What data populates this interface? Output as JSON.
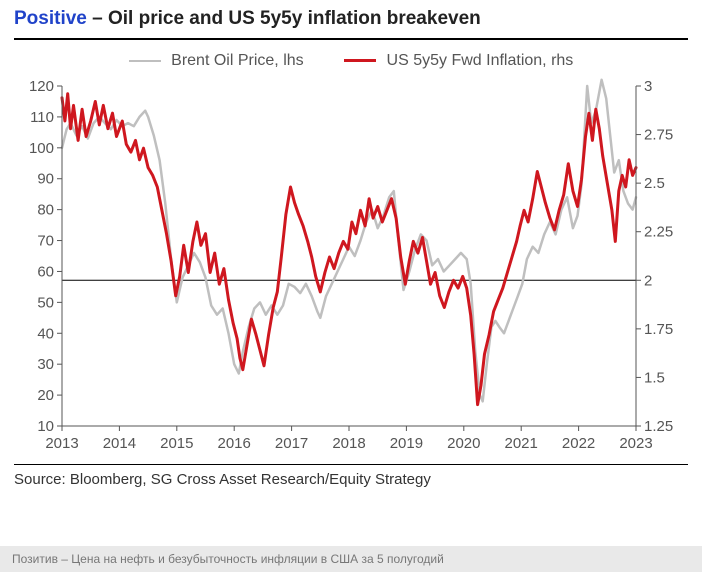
{
  "title": {
    "highlight": "Positive",
    "rest": " – Oil price and US 5y5y inflation breakeven"
  },
  "legend": {
    "items": [
      {
        "label": "Brent Oil Price, lhs",
        "color": "#bfbfbf",
        "width": 2.5
      },
      {
        "label": "US 5y5y Fwd Inflation, rhs",
        "color": "#cf171f",
        "width": 3
      }
    ]
  },
  "source": "Source: Bloomberg, SG Cross Asset Research/Equity Strategy",
  "footer": "Позитив – Цена на нефть и безубыточность инфляции в США за 5 полугодий",
  "chart": {
    "type": "line-dual-axis",
    "background_color": "#ffffff",
    "axis_color": "#555555",
    "tick_color": "#555555",
    "tick_fontsize": 15,
    "x": {
      "min": 2013,
      "max": 2023,
      "tick_step": 1,
      "ticks": [
        2013,
        2014,
        2015,
        2016,
        2017,
        2018,
        2019,
        2020,
        2021,
        2022,
        2023
      ]
    },
    "y_left": {
      "min": 10,
      "max": 120,
      "tick_step": 10,
      "ticks": [
        10,
        20,
        30,
        40,
        50,
        60,
        70,
        80,
        90,
        100,
        110,
        120
      ]
    },
    "y_right": {
      "min": 1.25,
      "max": 3.0,
      "tick_step": 0.25,
      "ticks": [
        1.25,
        1.5,
        1.75,
        2,
        2.25,
        2.5,
        2.75,
        3
      ]
    },
    "reference_line": {
      "y_right": 2.0,
      "color": "#000000",
      "width": 1
    },
    "series": [
      {
        "name": "brent",
        "axis": "left",
        "color": "#bfbfbf",
        "width": 2.5,
        "points": [
          [
            2013.0,
            100
          ],
          [
            2013.08,
            106
          ],
          [
            2013.15,
            108
          ],
          [
            2013.25,
            104
          ],
          [
            2013.35,
            107
          ],
          [
            2013.45,
            103
          ],
          [
            2013.55,
            108
          ],
          [
            2013.65,
            110
          ],
          [
            2013.75,
            108
          ],
          [
            2013.85,
            106
          ],
          [
            2013.95,
            109
          ],
          [
            2014.05,
            107
          ],
          [
            2014.15,
            108
          ],
          [
            2014.25,
            107
          ],
          [
            2014.35,
            110
          ],
          [
            2014.45,
            112
          ],
          [
            2014.5,
            110
          ],
          [
            2014.6,
            104
          ],
          [
            2014.7,
            96
          ],
          [
            2014.8,
            82
          ],
          [
            2014.9,
            64
          ],
          [
            2015.0,
            50
          ],
          [
            2015.1,
            58
          ],
          [
            2015.2,
            62
          ],
          [
            2015.3,
            66
          ],
          [
            2015.4,
            63
          ],
          [
            2015.5,
            58
          ],
          [
            2015.6,
            49
          ],
          [
            2015.7,
            46
          ],
          [
            2015.8,
            48
          ],
          [
            2015.9,
            40
          ],
          [
            2016.0,
            30
          ],
          [
            2016.08,
            27
          ],
          [
            2016.15,
            34
          ],
          [
            2016.25,
            42
          ],
          [
            2016.35,
            48
          ],
          [
            2016.45,
            50
          ],
          [
            2016.55,
            46
          ],
          [
            2016.65,
            49
          ],
          [
            2016.75,
            46
          ],
          [
            2016.85,
            49
          ],
          [
            2016.95,
            56
          ],
          [
            2017.05,
            55
          ],
          [
            2017.15,
            53
          ],
          [
            2017.25,
            56
          ],
          [
            2017.35,
            52
          ],
          [
            2017.45,
            47
          ],
          [
            2017.5,
            45
          ],
          [
            2017.6,
            52
          ],
          [
            2017.7,
            56
          ],
          [
            2017.8,
            60
          ],
          [
            2017.9,
            64
          ],
          [
            2018.0,
            68
          ],
          [
            2018.1,
            65
          ],
          [
            2018.2,
            70
          ],
          [
            2018.3,
            76
          ],
          [
            2018.4,
            80
          ],
          [
            2018.5,
            74
          ],
          [
            2018.6,
            78
          ],
          [
            2018.7,
            84
          ],
          [
            2018.78,
            86
          ],
          [
            2018.85,
            72
          ],
          [
            2018.95,
            54
          ],
          [
            2019.05,
            60
          ],
          [
            2019.15,
            67
          ],
          [
            2019.25,
            72
          ],
          [
            2019.35,
            70
          ],
          [
            2019.45,
            62
          ],
          [
            2019.55,
            64
          ],
          [
            2019.65,
            60
          ],
          [
            2019.75,
            62
          ],
          [
            2019.85,
            64
          ],
          [
            2019.95,
            66
          ],
          [
            2020.05,
            64
          ],
          [
            2020.12,
            56
          ],
          [
            2020.2,
            34
          ],
          [
            2020.28,
            20
          ],
          [
            2020.33,
            18
          ],
          [
            2020.4,
            30
          ],
          [
            2020.48,
            42
          ],
          [
            2020.55,
            44
          ],
          [
            2020.62,
            42
          ],
          [
            2020.7,
            40
          ],
          [
            2020.78,
            44
          ],
          [
            2020.86,
            48
          ],
          [
            2020.94,
            52
          ],
          [
            2021.02,
            56
          ],
          [
            2021.1,
            64
          ],
          [
            2021.2,
            68
          ],
          [
            2021.3,
            66
          ],
          [
            2021.4,
            72
          ],
          [
            2021.5,
            76
          ],
          [
            2021.6,
            72
          ],
          [
            2021.7,
            80
          ],
          [
            2021.8,
            84
          ],
          [
            2021.9,
            74
          ],
          [
            2021.98,
            78
          ],
          [
            2022.05,
            88
          ],
          [
            2022.15,
            120
          ],
          [
            2022.22,
            108
          ],
          [
            2022.3,
            112
          ],
          [
            2022.4,
            122
          ],
          [
            2022.48,
            116
          ],
          [
            2022.55,
            104
          ],
          [
            2022.62,
            92
          ],
          [
            2022.7,
            96
          ],
          [
            2022.78,
            86
          ],
          [
            2022.86,
            82
          ],
          [
            2022.94,
            80
          ],
          [
            2023.0,
            84
          ]
        ]
      },
      {
        "name": "inflation",
        "axis": "right",
        "color": "#cf171f",
        "width": 3,
        "points": [
          [
            2013.0,
            2.94
          ],
          [
            2013.05,
            2.82
          ],
          [
            2013.1,
            2.96
          ],
          [
            2013.15,
            2.78
          ],
          [
            2013.2,
            2.9
          ],
          [
            2013.28,
            2.72
          ],
          [
            2013.35,
            2.88
          ],
          [
            2013.42,
            2.74
          ],
          [
            2013.5,
            2.82
          ],
          [
            2013.58,
            2.92
          ],
          [
            2013.65,
            2.8
          ],
          [
            2013.72,
            2.9
          ],
          [
            2013.8,
            2.78
          ],
          [
            2013.88,
            2.86
          ],
          [
            2013.95,
            2.74
          ],
          [
            2014.05,
            2.82
          ],
          [
            2014.12,
            2.7
          ],
          [
            2014.2,
            2.66
          ],
          [
            2014.28,
            2.72
          ],
          [
            2014.35,
            2.62
          ],
          [
            2014.42,
            2.68
          ],
          [
            2014.5,
            2.58
          ],
          [
            2014.58,
            2.54
          ],
          [
            2014.66,
            2.48
          ],
          [
            2014.74,
            2.36
          ],
          [
            2014.82,
            2.24
          ],
          [
            2014.9,
            2.1
          ],
          [
            2014.98,
            1.92
          ],
          [
            2015.05,
            2.02
          ],
          [
            2015.12,
            2.18
          ],
          [
            2015.2,
            2.04
          ],
          [
            2015.28,
            2.2
          ],
          [
            2015.35,
            2.3
          ],
          [
            2015.42,
            2.18
          ],
          [
            2015.5,
            2.24
          ],
          [
            2015.58,
            2.04
          ],
          [
            2015.66,
            2.14
          ],
          [
            2015.74,
            1.98
          ],
          [
            2015.82,
            2.06
          ],
          [
            2015.9,
            1.9
          ],
          [
            2015.98,
            1.78
          ],
          [
            2016.05,
            1.7
          ],
          [
            2016.1,
            1.6
          ],
          [
            2016.15,
            1.54
          ],
          [
            2016.22,
            1.66
          ],
          [
            2016.3,
            1.8
          ],
          [
            2016.38,
            1.72
          ],
          [
            2016.45,
            1.64
          ],
          [
            2016.52,
            1.56
          ],
          [
            2016.6,
            1.72
          ],
          [
            2016.68,
            1.86
          ],
          [
            2016.75,
            1.94
          ],
          [
            2016.82,
            2.12
          ],
          [
            2016.9,
            2.34
          ],
          [
            2016.98,
            2.48
          ],
          [
            2017.05,
            2.4
          ],
          [
            2017.12,
            2.34
          ],
          [
            2017.2,
            2.28
          ],
          [
            2017.28,
            2.2
          ],
          [
            2017.35,
            2.12
          ],
          [
            2017.42,
            2.02
          ],
          [
            2017.5,
            1.94
          ],
          [
            2017.58,
            2.04
          ],
          [
            2017.66,
            2.12
          ],
          [
            2017.74,
            2.06
          ],
          [
            2017.82,
            2.14
          ],
          [
            2017.9,
            2.2
          ],
          [
            2017.98,
            2.16
          ],
          [
            2018.05,
            2.3
          ],
          [
            2018.12,
            2.24
          ],
          [
            2018.2,
            2.36
          ],
          [
            2018.28,
            2.28
          ],
          [
            2018.35,
            2.42
          ],
          [
            2018.42,
            2.32
          ],
          [
            2018.5,
            2.38
          ],
          [
            2018.58,
            2.3
          ],
          [
            2018.66,
            2.36
          ],
          [
            2018.74,
            2.42
          ],
          [
            2018.82,
            2.32
          ],
          [
            2018.9,
            2.12
          ],
          [
            2018.98,
            1.98
          ],
          [
            2019.05,
            2.1
          ],
          [
            2019.12,
            2.2
          ],
          [
            2019.2,
            2.14
          ],
          [
            2019.28,
            2.22
          ],
          [
            2019.35,
            2.1
          ],
          [
            2019.42,
            1.98
          ],
          [
            2019.5,
            2.04
          ],
          [
            2019.58,
            1.92
          ],
          [
            2019.66,
            1.86
          ],
          [
            2019.74,
            1.94
          ],
          [
            2019.82,
            2.0
          ],
          [
            2019.9,
            1.96
          ],
          [
            2019.98,
            2.02
          ],
          [
            2020.05,
            1.96
          ],
          [
            2020.12,
            1.82
          ],
          [
            2020.18,
            1.62
          ],
          [
            2020.24,
            1.36
          ],
          [
            2020.3,
            1.46
          ],
          [
            2020.36,
            1.62
          ],
          [
            2020.44,
            1.72
          ],
          [
            2020.52,
            1.84
          ],
          [
            2020.6,
            1.9
          ],
          [
            2020.68,
            1.96
          ],
          [
            2020.76,
            2.04
          ],
          [
            2020.84,
            2.12
          ],
          [
            2020.92,
            2.2
          ],
          [
            2020.98,
            2.28
          ],
          [
            2021.05,
            2.36
          ],
          [
            2021.12,
            2.3
          ],
          [
            2021.2,
            2.42
          ],
          [
            2021.28,
            2.56
          ],
          [
            2021.35,
            2.48
          ],
          [
            2021.42,
            2.4
          ],
          [
            2021.5,
            2.32
          ],
          [
            2021.58,
            2.26
          ],
          [
            2021.66,
            2.36
          ],
          [
            2021.74,
            2.44
          ],
          [
            2021.82,
            2.6
          ],
          [
            2021.9,
            2.46
          ],
          [
            2021.98,
            2.38
          ],
          [
            2022.05,
            2.52
          ],
          [
            2022.12,
            2.74
          ],
          [
            2022.18,
            2.86
          ],
          [
            2022.24,
            2.72
          ],
          [
            2022.3,
            2.88
          ],
          [
            2022.36,
            2.78
          ],
          [
            2022.42,
            2.64
          ],
          [
            2022.5,
            2.5
          ],
          [
            2022.58,
            2.36
          ],
          [
            2022.64,
            2.2
          ],
          [
            2022.7,
            2.46
          ],
          [
            2022.76,
            2.54
          ],
          [
            2022.82,
            2.48
          ],
          [
            2022.88,
            2.62
          ],
          [
            2022.94,
            2.54
          ],
          [
            2023.0,
            2.58
          ]
        ]
      }
    ]
  }
}
